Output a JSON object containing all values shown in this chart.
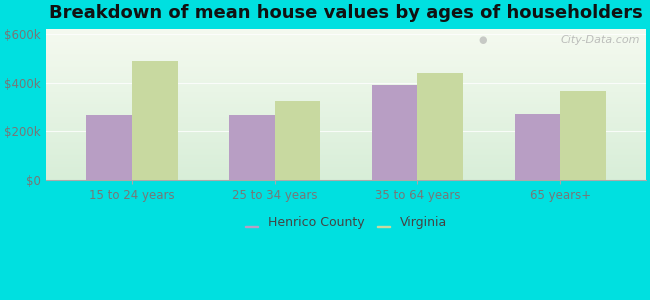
{
  "title": "Breakdown of mean house values by ages of householders",
  "categories": [
    "15 to 24 years",
    "25 to 34 years",
    "35 to 64 years",
    "65 years+"
  ],
  "henrico_values": [
    265000,
    265000,
    390000,
    270000
  ],
  "virginia_values": [
    490000,
    325000,
    440000,
    365000
  ],
  "henrico_color": "#b89ec4",
  "virginia_color": "#c8d9a0",
  "background_color": "#00e0e0",
  "plot_bg_top": "#f5faf0",
  "plot_bg_bottom": "#d8eed8",
  "ylim": [
    0,
    620000
  ],
  "yticks": [
    0,
    200000,
    400000,
    600000
  ],
  "ytick_labels": [
    "$0",
    "$200k",
    "$400k",
    "$600k"
  ],
  "legend_henrico": "Henrico County",
  "legend_virginia": "Virginia",
  "bar_width": 0.32,
  "title_fontsize": 13,
  "watermark": "City-Data.com"
}
